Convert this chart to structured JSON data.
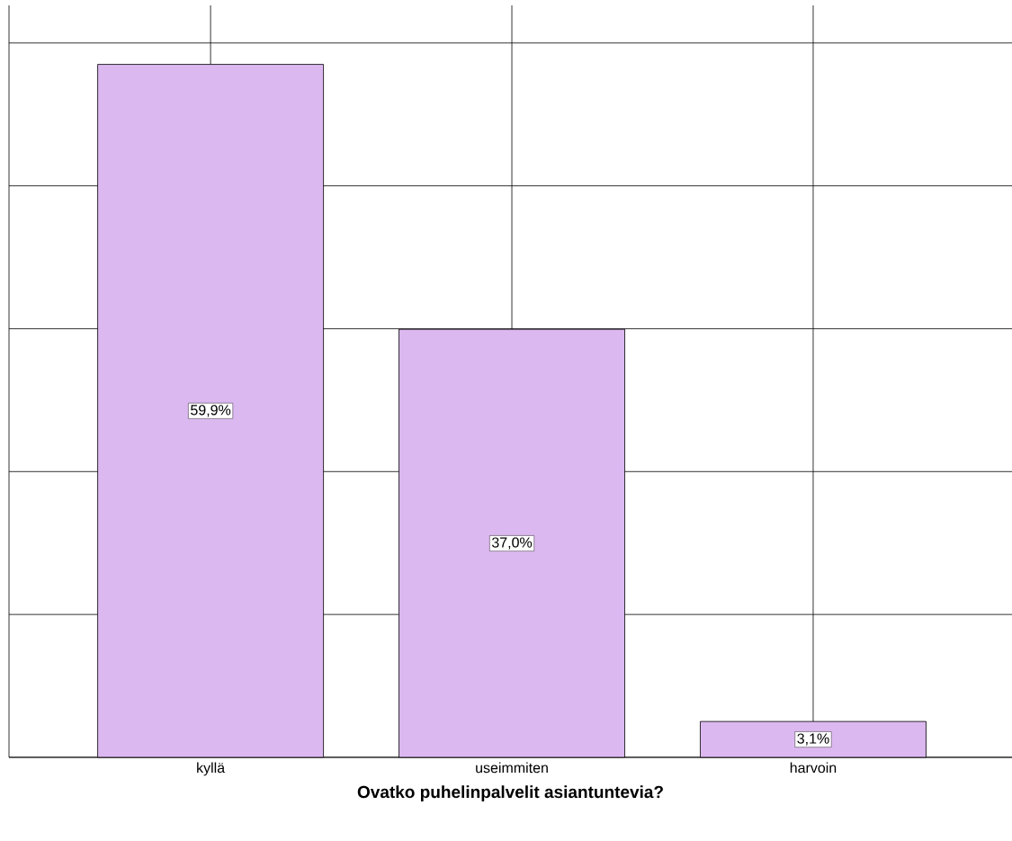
{
  "chart_data": {
    "type": "bar",
    "xlabel": "**Ovatko puhelinpalvelit asiantuntevia?**",
    "categories": [
      "kyllä",
      "useimmiten",
      "harvoin"
    ],
    "values": [
      59.9,
      37.0,
      3.1
    ],
    "value_labels": [
      "59,9%",
      "37,0%",
      "3,1%"
    ],
    "color": "#dcb8f0",
    "ylim": [
      0,
      65
    ],
    "yticks": [
      {
        "value": 0,
        "label": null
      },
      {
        "value": 12.35,
        "label": null
      },
      {
        "value": 24.7,
        "label": null
      },
      {
        "value": 37.05,
        "label": null
      },
      {
        "value": 49.4,
        "label": null
      },
      {
        "value": 61.75,
        "label": null
      }
    ],
    "tick_labels": "x",
    "grid": true
  }
}
